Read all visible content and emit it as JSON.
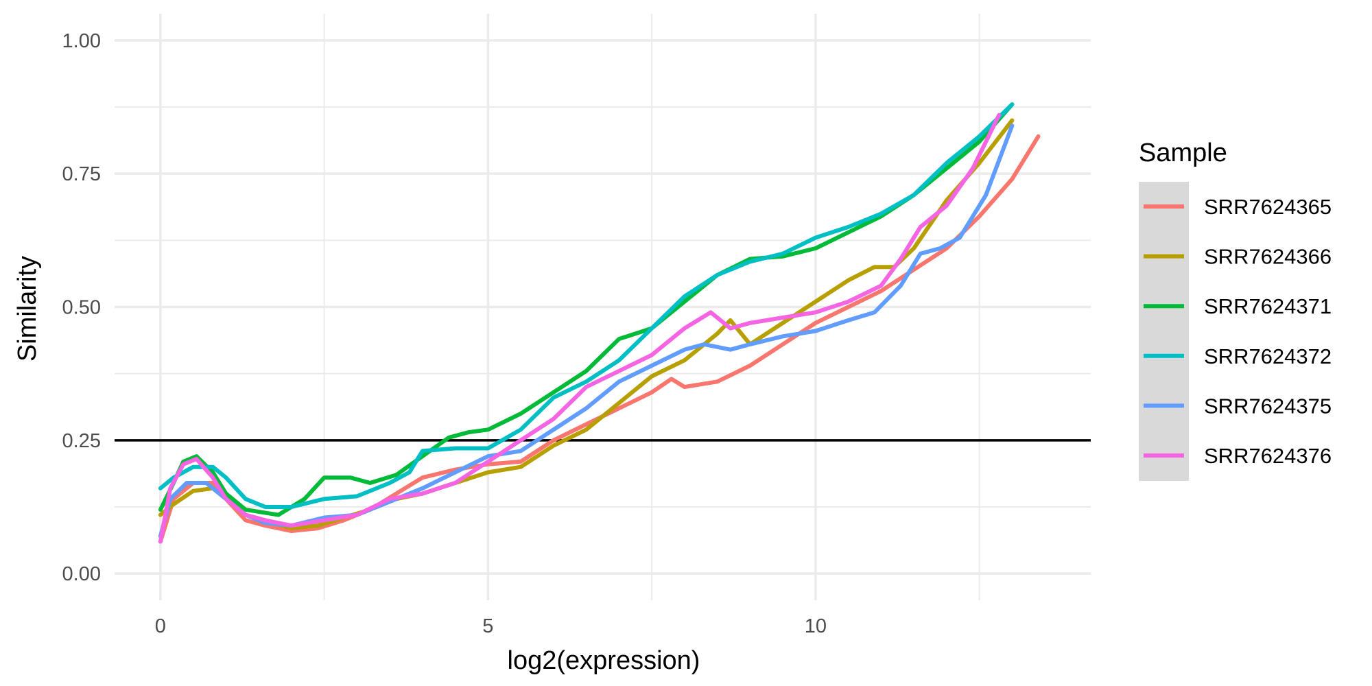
{
  "chart_data": {
    "type": "line",
    "xlabel": "log2(expression)",
    "ylabel": "Similarity",
    "xlim": [
      -0.7,
      14.2
    ],
    "ylim": [
      -0.05,
      1.05
    ],
    "x_ticks": [
      0,
      5,
      10
    ],
    "x_tick_labels": [
      "0",
      "5",
      "10"
    ],
    "y_ticks": [
      0,
      0.25,
      0.5,
      0.75,
      1.0
    ],
    "y_tick_labels": [
      "0.00",
      "0.25",
      "0.50",
      "0.75",
      "1.00"
    ],
    "grid": true,
    "reference_line": {
      "y": 0.25,
      "color": "#000000"
    },
    "legend": {
      "title": "Sample",
      "position": "right"
    },
    "series": [
      {
        "name": "SRR7624365",
        "color": "#F8766D",
        "x": [
          0,
          0.2,
          0.5,
          0.8,
          1.0,
          1.3,
          1.6,
          2.0,
          2.4,
          2.8,
          3.2,
          3.6,
          4.0,
          4.5,
          5.0,
          5.5,
          6.0,
          6.5,
          7.0,
          7.5,
          7.8,
          8.0,
          8.5,
          9.0,
          9.5,
          10.0,
          10.5,
          11.0,
          11.5,
          12.0,
          12.5,
          13.0,
          13.4
        ],
        "y": [
          0.06,
          0.14,
          0.17,
          0.17,
          0.14,
          0.1,
          0.09,
          0.08,
          0.085,
          0.1,
          0.12,
          0.15,
          0.18,
          0.195,
          0.205,
          0.21,
          0.25,
          0.28,
          0.31,
          0.34,
          0.365,
          0.35,
          0.36,
          0.39,
          0.43,
          0.47,
          0.5,
          0.53,
          0.57,
          0.61,
          0.67,
          0.74,
          0.82
        ]
      },
      {
        "name": "SRR7624366",
        "color": "#B79F00",
        "x": [
          0,
          0.2,
          0.5,
          0.8,
          1.0,
          1.3,
          1.6,
          2.0,
          2.4,
          2.8,
          3.2,
          3.6,
          4.0,
          4.5,
          5.0,
          5.5,
          6.0,
          6.5,
          7.0,
          7.5,
          8.0,
          8.5,
          8.7,
          9.0,
          9.5,
          10.0,
          10.5,
          10.9,
          11.2,
          11.5,
          12.0,
          12.5,
          13.0
        ],
        "y": [
          0.11,
          0.13,
          0.155,
          0.16,
          0.14,
          0.11,
          0.1,
          0.085,
          0.09,
          0.105,
          0.12,
          0.14,
          0.15,
          0.17,
          0.19,
          0.2,
          0.24,
          0.27,
          0.32,
          0.37,
          0.4,
          0.45,
          0.475,
          0.43,
          0.47,
          0.51,
          0.55,
          0.575,
          0.575,
          0.61,
          0.7,
          0.77,
          0.85
        ]
      },
      {
        "name": "SRR7624371",
        "color": "#00BA38",
        "x": [
          0,
          0.2,
          0.35,
          0.55,
          0.8,
          1.0,
          1.3,
          1.8,
          2.2,
          2.5,
          2.9,
          3.2,
          3.6,
          4.0,
          4.4,
          4.7,
          5.0,
          5.5,
          6.0,
          6.5,
          7.0,
          7.5,
          8.0,
          8.5,
          9.0,
          9.5,
          10.0,
          10.5,
          11.0,
          11.5,
          12.0,
          12.5,
          13.0
        ],
        "y": [
          0.12,
          0.17,
          0.21,
          0.22,
          0.19,
          0.15,
          0.12,
          0.11,
          0.14,
          0.18,
          0.18,
          0.17,
          0.185,
          0.22,
          0.255,
          0.265,
          0.27,
          0.3,
          0.34,
          0.38,
          0.44,
          0.46,
          0.51,
          0.56,
          0.59,
          0.595,
          0.61,
          0.64,
          0.67,
          0.71,
          0.76,
          0.81,
          0.88
        ]
      },
      {
        "name": "SRR7624372",
        "color": "#00BFC4",
        "x": [
          0,
          0.2,
          0.5,
          0.8,
          1.0,
          1.3,
          1.6,
          2.0,
          2.5,
          3.0,
          3.5,
          3.8,
          4.0,
          4.5,
          5.0,
          5.5,
          6.0,
          6.5,
          7.0,
          7.5,
          8.0,
          8.5,
          9.0,
          9.5,
          10.0,
          10.5,
          11.0,
          11.5,
          12.0,
          12.5,
          13.0
        ],
        "y": [
          0.16,
          0.18,
          0.2,
          0.2,
          0.18,
          0.14,
          0.125,
          0.125,
          0.14,
          0.145,
          0.17,
          0.19,
          0.23,
          0.235,
          0.235,
          0.27,
          0.33,
          0.36,
          0.4,
          0.46,
          0.52,
          0.56,
          0.585,
          0.6,
          0.63,
          0.65,
          0.675,
          0.71,
          0.77,
          0.82,
          0.88
        ]
      },
      {
        "name": "SRR7624375",
        "color": "#619CFF",
        "x": [
          0,
          0.15,
          0.4,
          0.7,
          1.0,
          1.3,
          1.6,
          2.0,
          2.5,
          3.0,
          3.5,
          4.0,
          4.5,
          5.0,
          5.5,
          6.0,
          6.5,
          7.0,
          7.5,
          8.0,
          8.3,
          8.7,
          9.0,
          9.5,
          10.0,
          10.5,
          10.9,
          11.3,
          11.6,
          11.9,
          12.2,
          12.6,
          13.0
        ],
        "y": [
          0.07,
          0.14,
          0.17,
          0.17,
          0.14,
          0.11,
          0.095,
          0.09,
          0.105,
          0.11,
          0.135,
          0.16,
          0.19,
          0.22,
          0.23,
          0.27,
          0.31,
          0.36,
          0.39,
          0.42,
          0.43,
          0.42,
          0.43,
          0.445,
          0.455,
          0.475,
          0.49,
          0.54,
          0.6,
          0.61,
          0.63,
          0.71,
          0.84
        ]
      },
      {
        "name": "SRR7624376",
        "color": "#F564E3",
        "x": [
          0,
          0.15,
          0.35,
          0.55,
          0.8,
          1.0,
          1.3,
          1.6,
          2.0,
          2.5,
          3.0,
          3.5,
          4.0,
          4.5,
          5.0,
          5.5,
          6.0,
          6.5,
          7.0,
          7.5,
          8.0,
          8.4,
          8.7,
          9.0,
          9.5,
          10.0,
          10.5,
          11.0,
          11.3,
          11.6,
          12.0,
          12.4,
          12.8
        ],
        "y": [
          0.06,
          0.16,
          0.205,
          0.215,
          0.18,
          0.14,
          0.11,
          0.1,
          0.09,
          0.1,
          0.11,
          0.14,
          0.15,
          0.17,
          0.21,
          0.25,
          0.29,
          0.35,
          0.38,
          0.41,
          0.46,
          0.49,
          0.46,
          0.47,
          0.48,
          0.49,
          0.51,
          0.54,
          0.59,
          0.65,
          0.69,
          0.76,
          0.86
        ]
      }
    ]
  }
}
